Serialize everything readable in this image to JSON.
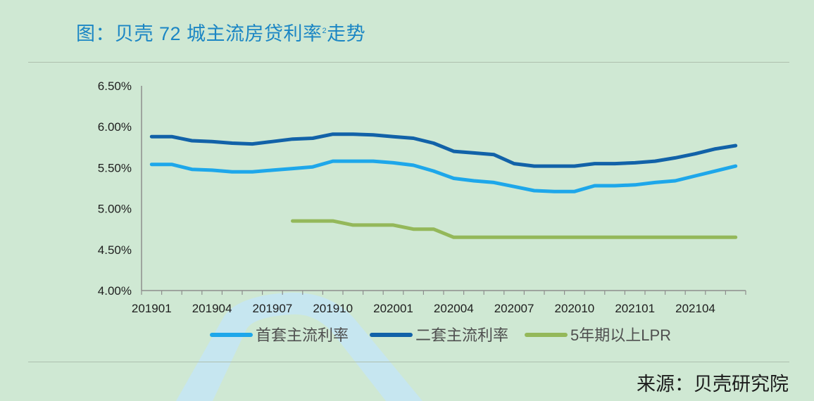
{
  "title": {
    "main": "图：贝壳 72 城主流房贷利率",
    "sup": "2",
    "tail": "走势"
  },
  "source": "来源：贝壳研究院",
  "chart_data": {
    "type": "line",
    "categories": [
      "201901",
      "201902",
      "201903",
      "201904",
      "201905",
      "201906",
      "201907",
      "201908",
      "201909",
      "201910",
      "201911",
      "201912",
      "202001",
      "202002",
      "202003",
      "202004",
      "202005",
      "202006",
      "202007",
      "202008",
      "202009",
      "202010",
      "202011",
      "202012",
      "202101",
      "202102",
      "202103",
      "202104",
      "202105",
      "202106"
    ],
    "x_tick_labels": [
      "201901",
      "201904",
      "201907",
      "201910",
      "202001",
      "202004",
      "202007",
      "202010",
      "202101",
      "202104"
    ],
    "y_tick_labels": [
      "4.00%",
      "4.50%",
      "5.00%",
      "5.50%",
      "6.00%",
      "6.50%"
    ],
    "ylim": [
      4.0,
      6.5
    ],
    "grid": false,
    "legend_position": "bottom",
    "series": [
      {
        "name": "首套主流利率",
        "color": "#1ea7ea",
        "values": [
          5.54,
          5.54,
          5.48,
          5.47,
          5.45,
          5.45,
          5.47,
          5.49,
          5.51,
          5.58,
          5.58,
          5.58,
          5.56,
          5.53,
          5.46,
          5.37,
          5.34,
          5.32,
          5.27,
          5.22,
          5.21,
          5.21,
          5.28,
          5.28,
          5.29,
          5.32,
          5.34,
          5.4,
          5.46,
          5.52
        ]
      },
      {
        "name": "二套主流利率",
        "color": "#1262a8",
        "values": [
          5.88,
          5.88,
          5.83,
          5.82,
          5.8,
          5.79,
          5.82,
          5.85,
          5.86,
          5.91,
          5.91,
          5.9,
          5.88,
          5.86,
          5.8,
          5.7,
          5.68,
          5.66,
          5.55,
          5.52,
          5.52,
          5.52,
          5.55,
          5.55,
          5.56,
          5.58,
          5.62,
          5.67,
          5.73,
          5.77
        ]
      },
      {
        "name": "5年期以上LPR",
        "color": "#94b85a",
        "values": [
          null,
          null,
          null,
          null,
          null,
          null,
          null,
          4.85,
          4.85,
          4.85,
          4.8,
          4.8,
          4.8,
          4.75,
          4.75,
          4.65,
          4.65,
          4.65,
          4.65,
          4.65,
          4.65,
          4.65,
          4.65,
          4.65,
          4.65,
          4.65,
          4.65,
          4.65,
          4.65,
          4.65
        ]
      }
    ]
  }
}
